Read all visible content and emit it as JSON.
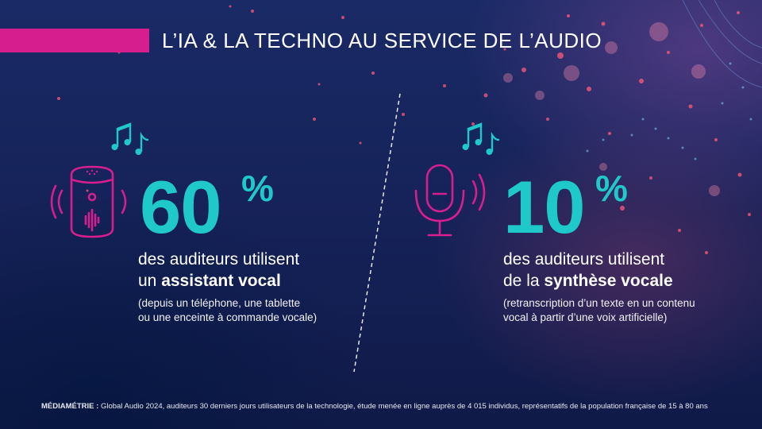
{
  "title": "L’IA & LA TECHNO AU SERVICE DE L’AUDIO",
  "stats": [
    {
      "value": "60",
      "unit": "%",
      "line1": "des auditeurs utilisent",
      "line2_prefix": "un ",
      "line2_bold": "assistant vocal",
      "note_line1": "(depuis un téléphone, une tablette",
      "note_line2": "ou une enceinte à commande vocale)",
      "icon": "smart-speaker-icon"
    },
    {
      "value": "10",
      "unit": "%",
      "line1": "des auditeurs utilisent",
      "line2_prefix": "de la ",
      "line2_bold": "synthèse vocale",
      "note_line1": "(retranscription d’un texte en un contenu",
      "note_line2": "vocal à partir d’une voix artificielle)",
      "icon": "microphone-icon"
    }
  ],
  "footer": {
    "source_bold": "MÉDIAMÉTRIE :",
    "source_text": " Global Audio 2024, auditeurs 30 derniers jours utilisateurs de la technologie, étude menée en ligne auprès de 4 015 individus, représentatifs de la population française de 15 à 80 ans"
  },
  "colors": {
    "accent_magenta": "#d61e8f",
    "accent_teal": "#20c9c9",
    "background": "#16235a"
  }
}
